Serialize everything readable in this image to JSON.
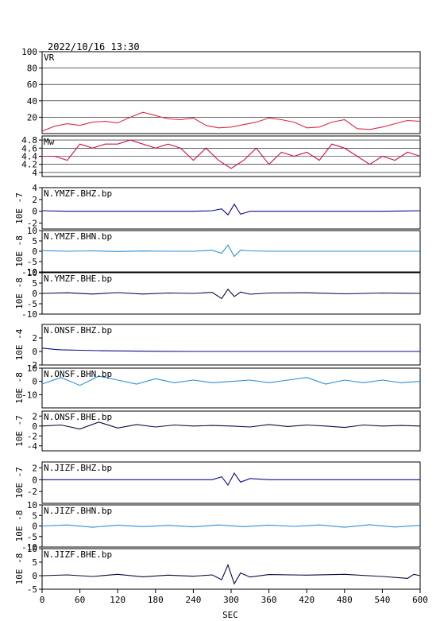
{
  "header": {
    "timestamp": "2022/10/16 13:30"
  },
  "colors": {
    "vr": "#e0294a",
    "mw": "#d4103e",
    "bhz": "#0c0c8c",
    "bhn": "#2a90d8",
    "bhe": "#0a0a40"
  },
  "chart_data": {
    "type": "line",
    "x_label": "SEC",
    "x_range": [
      0,
      600
    ],
    "x_ticks": [
      0,
      60,
      120,
      180,
      240,
      300,
      360,
      420,
      480,
      540,
      600
    ],
    "panels": [
      {
        "label": "VR",
        "ylabel": "",
        "ylim": [
          0,
          100
        ],
        "yticks": [
          20,
          40,
          60,
          80,
          100
        ],
        "grid": true,
        "color": "vr",
        "x": [
          0,
          20,
          40,
          60,
          80,
          100,
          120,
          140,
          160,
          180,
          200,
          220,
          240,
          260,
          280,
          300,
          320,
          340,
          360,
          380,
          400,
          420,
          440,
          460,
          480,
          500,
          520,
          540,
          560,
          580,
          600
        ],
        "y": [
          3,
          9,
          12,
          10,
          14,
          15,
          13,
          20,
          26,
          22,
          18,
          17,
          19,
          10,
          7,
          8,
          11,
          14,
          19,
          17,
          14,
          7,
          8,
          14,
          17,
          6,
          5,
          8,
          12,
          16,
          15
        ]
      },
      {
        "label": "Mw",
        "ylabel": "",
        "ylim": [
          3.9,
          4.9
        ],
        "yticks": [
          4.0,
          4.2,
          4.4,
          4.6,
          4.8
        ],
        "grid": true,
        "color": "mw",
        "x": [
          0,
          20,
          40,
          60,
          80,
          100,
          120,
          140,
          160,
          180,
          200,
          220,
          240,
          260,
          280,
          300,
          320,
          340,
          360,
          380,
          400,
          420,
          440,
          460,
          480,
          500,
          520,
          540,
          560,
          580,
          600
        ],
        "y": [
          4.4,
          4.4,
          4.3,
          4.7,
          4.6,
          4.7,
          4.7,
          4.8,
          4.7,
          4.6,
          4.7,
          4.6,
          4.3,
          4.6,
          4.3,
          4.1,
          4.3,
          4.6,
          4.2,
          4.5,
          4.4,
          4.5,
          4.3,
          4.7,
          4.6,
          4.4,
          4.2,
          4.4,
          4.3,
          4.5,
          4.4
        ]
      },
      {
        "label": "N.YMZF.BHZ.bp",
        "ylabel": "10E -7",
        "ylim": [
          -3,
          4
        ],
        "yticks": [
          -2,
          0,
          2,
          4
        ],
        "color": "bhz",
        "x": [
          0,
          40,
          80,
          120,
          160,
          200,
          240,
          270,
          285,
          295,
          305,
          315,
          330,
          360,
          420,
          480,
          540,
          600
        ],
        "y": [
          0.1,
          0,
          0,
          0,
          0,
          0,
          0,
          0.1,
          0.4,
          -0.6,
          1.2,
          -0.5,
          0,
          0,
          0,
          0,
          0,
          0.1
        ]
      },
      {
        "label": "N.YMZF.BHN.bp",
        "ylabel": "10E -8",
        "ylim": [
          -10,
          10
        ],
        "yticks": [
          -10,
          -5,
          0,
          5,
          10
        ],
        "color": "bhn",
        "x": [
          0,
          40,
          80,
          120,
          160,
          200,
          240,
          270,
          285,
          295,
          305,
          315,
          330,
          360,
          420,
          480,
          540,
          600
        ],
        "y": [
          0.3,
          0,
          0.2,
          -0.1,
          0.1,
          0,
          0,
          0.5,
          -1,
          3,
          -2.5,
          0.5,
          0.2,
          0,
          0,
          0,
          0,
          0
        ]
      },
      {
        "label": "N.YMZF.BHE.bp",
        "ylabel": "10E -8",
        "ylim": [
          -10,
          10
        ],
        "yticks": [
          -10,
          -5,
          0,
          5,
          10
        ],
        "color": "bhe",
        "x": [
          0,
          40,
          80,
          120,
          160,
          200,
          240,
          270,
          285,
          295,
          305,
          315,
          330,
          360,
          420,
          480,
          540,
          600
        ],
        "y": [
          0,
          0.3,
          -0.3,
          0.4,
          -0.3,
          0.2,
          0,
          0.5,
          -2.5,
          2,
          -1.5,
          0.6,
          -0.4,
          0.2,
          0.3,
          -0.2,
          0.2,
          0
        ]
      },
      {
        "label": "N.ONSF.BHZ.bp",
        "ylabel": "10E -4",
        "ylim": [
          -2,
          4
        ],
        "yticks": [
          -2,
          0,
          2
        ],
        "color": "bhz",
        "x": [
          0,
          10,
          20,
          30,
          60,
          90,
          120,
          150,
          180,
          240,
          300,
          360,
          420,
          480,
          540,
          600
        ],
        "y": [
          0.5,
          0.4,
          0.3,
          0.25,
          0.18,
          0.12,
          0.08,
          0.05,
          0.02,
          0,
          0,
          0,
          0,
          0,
          0,
          0
        ]
      },
      {
        "label": "N.ONSF.BHN.bp",
        "ylabel": "10E -8",
        "ylim": [
          -20,
          10
        ],
        "yticks": [
          -10,
          0,
          10
        ],
        "color": "bhn",
        "x": [
          0,
          30,
          60,
          90,
          120,
          150,
          180,
          210,
          240,
          270,
          300,
          330,
          360,
          390,
          420,
          450,
          480,
          510,
          540,
          570,
          600
        ],
        "y": [
          -2,
          3,
          -3,
          4,
          1,
          -2,
          2,
          -1,
          1,
          -1,
          0,
          1,
          -1,
          1,
          3,
          -2,
          1,
          -1,
          1,
          -1,
          0
        ]
      },
      {
        "label": "N.ONSF.BHE.bp",
        "ylabel": "10E -7",
        "ylim": [
          -5,
          3
        ],
        "yticks": [
          -4,
          -2,
          0,
          2
        ],
        "color": "bhe",
        "x": [
          0,
          30,
          60,
          90,
          120,
          150,
          180,
          210,
          240,
          270,
          300,
          330,
          360,
          390,
          420,
          450,
          480,
          510,
          540,
          570,
          600
        ],
        "y": [
          0,
          0.2,
          -0.6,
          0.8,
          -0.4,
          0.3,
          -0.2,
          0.2,
          0,
          0.1,
          0,
          -0.2,
          0.3,
          -0.1,
          0.2,
          0,
          -0.3,
          0.2,
          0,
          0.1,
          0
        ]
      },
      {
        "label": "N.JIZF.BHZ.bp",
        "ylabel": "10E -7",
        "ylim": [
          -4,
          3
        ],
        "yticks": [
          -2,
          0,
          2
        ],
        "color": "bhz",
        "x": [
          0,
          60,
          120,
          180,
          240,
          270,
          285,
          295,
          305,
          315,
          330,
          360,
          420,
          480,
          540,
          600
        ],
        "y": [
          0,
          0,
          0,
          0,
          0,
          0,
          0.5,
          -0.9,
          1.1,
          -0.4,
          0.2,
          0,
          0,
          0,
          0,
          0
        ]
      },
      {
        "label": "N.JIZF.BHN.bp",
        "ylabel": "10E -8",
        "ylim": [
          -10,
          10
        ],
        "yticks": [
          -10,
          -5,
          0,
          5,
          10
        ],
        "color": "bhn",
        "x": [
          0,
          40,
          80,
          120,
          160,
          200,
          240,
          280,
          320,
          360,
          400,
          440,
          480,
          520,
          560,
          600
        ],
        "y": [
          0,
          0.5,
          -0.6,
          0.4,
          -0.3,
          0.3,
          -0.4,
          0.5,
          -0.3,
          0.4,
          -0.2,
          0.5,
          -0.6,
          0.6,
          -0.5,
          0.3
        ]
      },
      {
        "label": "N.JIZF.BHE.bp",
        "ylabel": "10E -8",
        "ylim": [
          -5,
          10
        ],
        "yticks": [
          -5,
          0,
          5,
          10
        ],
        "color": "bhe",
        "x": [
          0,
          40,
          80,
          120,
          160,
          200,
          240,
          270,
          285,
          295,
          305,
          315,
          330,
          360,
          420,
          480,
          540,
          580,
          590,
          600
        ],
        "y": [
          0,
          0.3,
          -0.3,
          0.5,
          -0.4,
          0.2,
          -0.2,
          0.3,
          -1.5,
          4,
          -3,
          1,
          -0.5,
          0.4,
          0.2,
          0.5,
          -0.3,
          -1,
          0.5,
          0
        ]
      }
    ]
  }
}
